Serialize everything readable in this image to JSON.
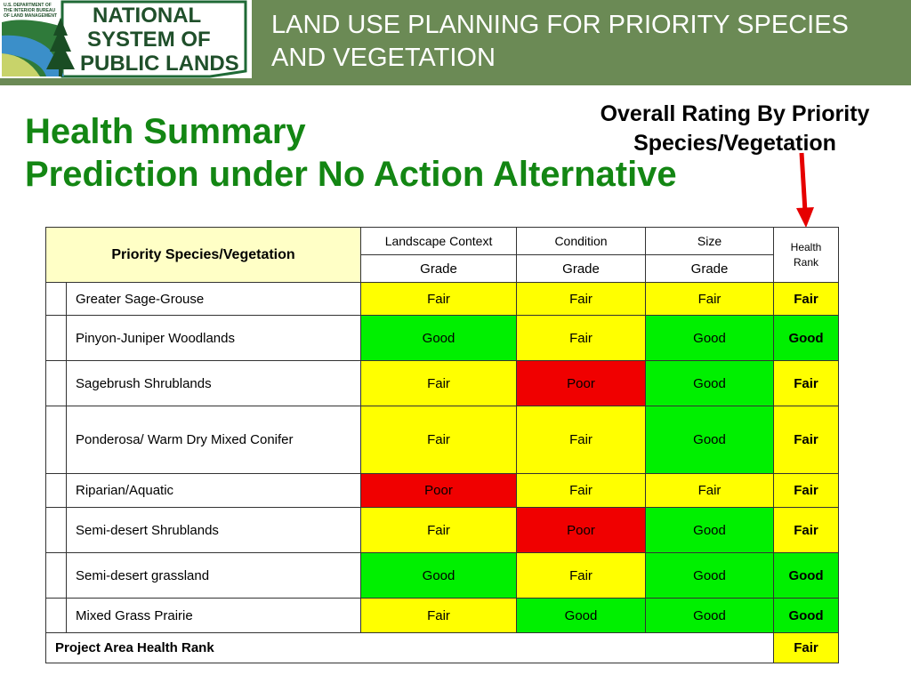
{
  "logo": {
    "agency_text": "U.S. DEPARTMENT OF THE INTERIOR BUREAU OF LAND MANAGEMENT",
    "line1": "NATIONAL",
    "line2": "SYSTEM OF",
    "line3": "PUBLIC LANDS"
  },
  "banner": {
    "line1": "LAND USE PLANNING FOR PRIORITY SPECIES",
    "line2": "AND VEGETATION"
  },
  "title": {
    "line1": "Health Summary",
    "line2": "Prediction under No Action Alternative"
  },
  "callout": {
    "line1": "Overall Rating By Priority",
    "line2": "Species/Vegetation"
  },
  "table": {
    "header_label": "Priority Species/Vegetation",
    "columns": [
      "Landscape Context",
      "Condition",
      "Size"
    ],
    "subheaders": [
      "Grade",
      "Grade",
      "Grade"
    ],
    "rank_header": "Health Rank",
    "rows": [
      {
        "name": "Greater Sage-Grouse",
        "landscape": "Fair",
        "condition": "Fair",
        "size": "Fair",
        "rank": "Fair"
      },
      {
        "name": "Pinyon-Juniper Woodlands",
        "landscape": "Good",
        "condition": "Fair",
        "size": "Good",
        "rank": "Good"
      },
      {
        "name": "Sagebrush Shrublands",
        "landscape": "Fair",
        "condition": "Poor",
        "size": "Good",
        "rank": "Fair"
      },
      {
        "name": "Ponderosa/ Warm Dry Mixed Conifer",
        "landscape": "Fair",
        "condition": "Fair",
        "size": "Good",
        "rank": "Fair"
      },
      {
        "name": "Riparian/Aquatic",
        "landscape": "Poor",
        "condition": "Fair",
        "size": "Fair",
        "rank": "Fair"
      },
      {
        "name": "Semi-desert Shrublands",
        "landscape": "Fair",
        "condition": "Poor",
        "size": "Good",
        "rank": "Fair"
      },
      {
        "name": "Semi-desert grassland",
        "landscape": "Good",
        "condition": "Fair",
        "size": "Good",
        "rank": "Good"
      },
      {
        "name": "Mixed Grass Prairie",
        "landscape": "Fair",
        "condition": "Good",
        "size": "Good",
        "rank": "Good"
      }
    ],
    "footer_label": "Project Area Health Rank",
    "footer_rank": "Fair"
  },
  "colors": {
    "banner": "#6b8a55",
    "title": "#138613",
    "Good": "#00f000",
    "Fair": "#ffff00",
    "Poor": "#f00000",
    "header": "#ffffc6",
    "arrow": "#e60000"
  }
}
